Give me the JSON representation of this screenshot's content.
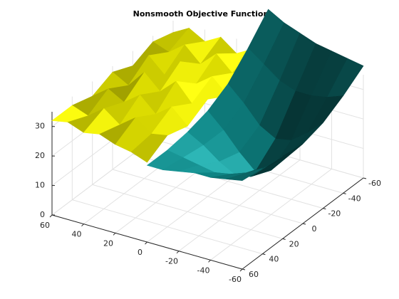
{
  "chart_data": {
    "type": "surface",
    "title": "Nonsmooth Objective Function",
    "xlim": [
      -60,
      60
    ],
    "ylim": [
      -60,
      60
    ],
    "zlim": [
      0,
      35
    ],
    "xticks": [
      -60,
      -40,
      -20,
      0,
      20,
      40,
      60
    ],
    "yticks": [
      -60,
      -40,
      -20,
      0,
      20,
      40,
      60
    ],
    "zticks": [
      0,
      10,
      20,
      30
    ],
    "grid": true,
    "surfaces": [
      {
        "color": "#e6e600",
        "x": [
          -60,
          -40,
          -20,
          0,
          20,
          40,
          60
        ],
        "y": [
          0,
          10,
          20,
          30,
          40,
          50,
          60
        ],
        "z": [
          [
            30,
            32,
            29,
            33,
            29,
            31,
            27
          ],
          [
            33,
            30,
            34,
            30,
            34,
            30,
            29
          ],
          [
            30,
            35,
            30,
            36,
            30,
            34,
            30
          ],
          [
            34,
            30,
            36,
            31,
            35,
            30,
            32
          ],
          [
            31,
            35,
            30,
            36,
            31,
            34,
            31
          ],
          [
            34,
            31,
            35,
            30,
            34,
            30,
            33
          ],
          [
            31,
            33,
            30,
            33,
            30,
            32,
            32
          ]
        ]
      },
      {
        "color": "#0f8c8c",
        "x": [
          -60,
          -40,
          -20,
          0,
          20,
          40,
          60
        ],
        "y": [
          -60,
          -50,
          -40,
          -30,
          -20,
          -10,
          0
        ],
        "z": [
          [
            38,
            33,
            29,
            27,
            28,
            29,
            30
          ],
          [
            39,
            31,
            24,
            21,
            23,
            26,
            29
          ],
          [
            40,
            30,
            20,
            15,
            18,
            24,
            28
          ],
          [
            41,
            30,
            19,
            13,
            17,
            23,
            28
          ],
          [
            43,
            32,
            22,
            18,
            20,
            24,
            27
          ],
          [
            45,
            36,
            28,
            24,
            24,
            25,
            26
          ],
          [
            48,
            40,
            33,
            29,
            27,
            26,
            26
          ]
        ]
      }
    ]
  }
}
